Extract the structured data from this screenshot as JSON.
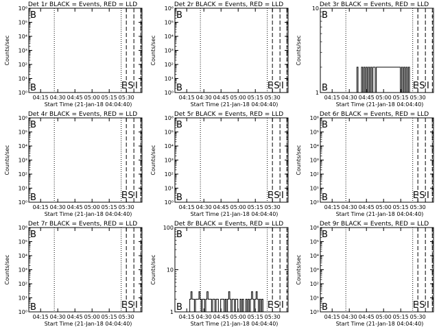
{
  "figure": {
    "xlabel": "Start Time (21-Jan-18 04:04:40)",
    "ylabel": "Counts/sec",
    "x_tick_labels": [
      "04:15",
      "04:30",
      "04:45",
      "05:00",
      "05:15",
      "05:30"
    ],
    "x_tick_minutes": [
      10.33,
      25.33,
      40.33,
      55.33,
      70.33,
      85.33
    ],
    "x_range_minutes": [
      0,
      99
    ],
    "dotted_lines_minutes": [
      22.3,
      80.8
    ],
    "dashed_lines_minutes": [
      85.3,
      91.9,
      98.0
    ],
    "markers": [
      {
        "text": "B",
        "minute": 1.2
      },
      {
        "text": "E",
        "minute": 80.9
      },
      {
        "text": "S",
        "minute": 86.6
      },
      {
        "text": "I",
        "minute": 93.0
      }
    ]
  },
  "chart_data": [
    {
      "type": "line",
      "title": "Det 1r BLACK = Events, RED = LLD",
      "scale": "log",
      "yticks": [
        {
          "value": 1,
          "label": "10⁰"
        },
        {
          "value": 10,
          "label": "10¹"
        },
        {
          "value": 100,
          "label": "10²"
        },
        {
          "value": 1000,
          "label": "10³"
        },
        {
          "value": 10000,
          "label": "10⁴"
        },
        {
          "value": 100000,
          "label": "10⁵"
        },
        {
          "value": 1000000,
          "label": "10⁶"
        }
      ],
      "ylim": [
        1,
        1000000
      ],
      "series": []
    },
    {
      "type": "line",
      "title": "Det 2r BLACK = Events, RED = LLD",
      "scale": "log",
      "yticks": [
        {
          "value": 1,
          "label": "10⁰"
        },
        {
          "value": 10,
          "label": "10¹"
        },
        {
          "value": 100,
          "label": "10²"
        },
        {
          "value": 1000,
          "label": "10³"
        },
        {
          "value": 10000,
          "label": "10⁴"
        },
        {
          "value": 100000,
          "label": "10⁵"
        },
        {
          "value": 1000000,
          "label": "10⁶"
        }
      ],
      "ylim": [
        1,
        1000000
      ],
      "series": []
    },
    {
      "type": "line",
      "title": "Det 3r BLACK = Events, RED = LLD",
      "scale": "log",
      "yticks": [
        {
          "value": 1,
          "label": "1"
        },
        {
          "value": 10,
          "label": "10"
        }
      ],
      "ylim": [
        1,
        10
      ],
      "series": [
        {
          "x": [
            0,
            32,
            32,
            33,
            33,
            36,
            36,
            37,
            37,
            38,
            38,
            39,
            39,
            40,
            40,
            41,
            41,
            42,
            42,
            43,
            43,
            44,
            44,
            45,
            45,
            46,
            46,
            48,
            48,
            49,
            49,
            70,
            70,
            71,
            71,
            72,
            72,
            73,
            73,
            74,
            74,
            75,
            75,
            76,
            76,
            77,
            77,
            78,
            78,
            99
          ],
          "y": [
            1,
            1,
            2,
            2,
            1,
            1,
            2,
            2,
            1,
            1,
            2,
            2,
            1,
            1,
            2,
            2,
            1,
            1,
            2,
            2,
            1,
            1,
            2,
            2,
            1,
            1,
            2,
            2,
            1,
            1,
            2,
            2,
            1,
            1,
            2,
            2,
            1,
            1,
            2,
            2,
            1,
            1,
            2,
            2,
            1,
            1,
            2,
            2,
            1,
            1
          ]
        }
      ]
    },
    {
      "type": "line",
      "title": "Det 4r BLACK = Events, RED = LLD",
      "scale": "log",
      "yticks": [
        {
          "value": 1,
          "label": "10⁰"
        },
        {
          "value": 10,
          "label": "10¹"
        },
        {
          "value": 100,
          "label": "10²"
        },
        {
          "value": 1000,
          "label": "10³"
        },
        {
          "value": 10000,
          "label": "10⁴"
        },
        {
          "value": 100000,
          "label": "10⁵"
        },
        {
          "value": 1000000,
          "label": "10⁶"
        }
      ],
      "ylim": [
        1,
        1000000
      ],
      "series": []
    },
    {
      "type": "line",
      "title": "Det 5r BLACK = Events, RED = LLD",
      "scale": "log",
      "yticks": [
        {
          "value": 1,
          "label": "10⁰"
        },
        {
          "value": 10,
          "label": "10¹"
        },
        {
          "value": 100,
          "label": "10²"
        },
        {
          "value": 1000,
          "label": "10³"
        },
        {
          "value": 10000,
          "label": "10⁴"
        },
        {
          "value": 100000,
          "label": "10⁵"
        },
        {
          "value": 1000000,
          "label": "10⁶"
        }
      ],
      "ylim": [
        1,
        1000000
      ],
      "series": []
    },
    {
      "type": "line",
      "title": "Det 6r BLACK = Events, RED = LLD",
      "scale": "log",
      "yticks": [
        {
          "value": 1,
          "label": "10⁰"
        },
        {
          "value": 10,
          "label": "10¹"
        },
        {
          "value": 100,
          "label": "10²"
        },
        {
          "value": 1000,
          "label": "10³"
        },
        {
          "value": 10000,
          "label": "10⁴"
        },
        {
          "value": 100000,
          "label": "10⁵"
        },
        {
          "value": 1000000,
          "label": "10⁶"
        }
      ],
      "ylim": [
        1,
        1000000
      ],
      "series": []
    },
    {
      "type": "line",
      "title": "Det 7r BLACK = Events, RED = LLD",
      "scale": "log",
      "yticks": [
        {
          "value": 1,
          "label": "10⁰"
        },
        {
          "value": 10,
          "label": "10¹"
        },
        {
          "value": 100,
          "label": "10²"
        },
        {
          "value": 1000,
          "label": "10³"
        },
        {
          "value": 10000,
          "label": "10⁴"
        },
        {
          "value": 100000,
          "label": "10⁵"
        },
        {
          "value": 1000000,
          "label": "10⁶"
        }
      ],
      "ylim": [
        1,
        1000000
      ],
      "series": []
    },
    {
      "type": "line",
      "title": "Det 8r BLACK = Events, RED = LLD",
      "scale": "log",
      "yticks": [
        {
          "value": 1,
          "label": "1"
        },
        {
          "value": 10,
          "label": "10"
        },
        {
          "value": 100,
          "label": "100"
        }
      ],
      "ylim": [
        1,
        100
      ],
      "series": [
        {
          "x": [
            0,
            13,
            13,
            14,
            14,
            15,
            15,
            17,
            17,
            18,
            18,
            19,
            19,
            21,
            21,
            22,
            22,
            23,
            23,
            24,
            24,
            25,
            25,
            26,
            26,
            27,
            27,
            28,
            28,
            29,
            29,
            30,
            30,
            32,
            32,
            33,
            33,
            34,
            34,
            35,
            35,
            36,
            36,
            37,
            37,
            38,
            38,
            40,
            40,
            41,
            41,
            43,
            43,
            44,
            44,
            45,
            45,
            46,
            46,
            47,
            47,
            48,
            48,
            49,
            49,
            50,
            50,
            52,
            52,
            53,
            53,
            54,
            54,
            55,
            55,
            57,
            57,
            58,
            58,
            59,
            59,
            60,
            60,
            62,
            62,
            63,
            63,
            64,
            64,
            65,
            65,
            66,
            66,
            67,
            67,
            68,
            68,
            69,
            69,
            70,
            70,
            71,
            71,
            72,
            72,
            73,
            73,
            74,
            74,
            75,
            75,
            76,
            76,
            77,
            77,
            99
          ],
          "y": [
            1,
            1,
            2,
            2,
            3,
            3,
            2,
            2,
            1,
            1,
            2,
            2,
            2,
            2,
            3,
            3,
            2,
            2,
            1,
            1,
            2,
            2,
            2,
            2,
            1,
            1,
            2,
            2,
            3,
            3,
            2,
            2,
            2,
            2,
            1,
            1,
            2,
            2,
            2,
            2,
            1,
            1,
            2,
            2,
            2,
            2,
            1,
            1,
            2,
            2,
            2,
            2,
            1,
            1,
            2,
            2,
            1,
            1,
            2,
            2,
            3,
            3,
            2,
            2,
            1,
            1,
            2,
            2,
            1,
            1,
            2,
            2,
            2,
            2,
            1,
            1,
            2,
            2,
            1,
            1,
            2,
            2,
            1,
            1,
            2,
            2,
            1,
            1,
            2,
            2,
            1,
            1,
            2,
            2,
            3,
            3,
            2,
            2,
            1,
            1,
            2,
            2,
            3,
            3,
            2,
            2,
            1,
            1,
            2,
            2,
            1,
            1,
            2,
            2,
            1,
            1
          ]
        }
      ]
    },
    {
      "type": "line",
      "title": "Det 9r BLACK = Events, RED = LLD",
      "scale": "log",
      "yticks": [
        {
          "value": 1,
          "label": "10⁰"
        },
        {
          "value": 10,
          "label": "10¹"
        },
        {
          "value": 100,
          "label": "10²"
        },
        {
          "value": 1000,
          "label": "10³"
        },
        {
          "value": 10000,
          "label": "10⁴"
        },
        {
          "value": 100000,
          "label": "10⁵"
        },
        {
          "value": 1000000,
          "label": "10⁶"
        }
      ],
      "ylim": [
        1,
        1000000
      ],
      "series": []
    }
  ]
}
